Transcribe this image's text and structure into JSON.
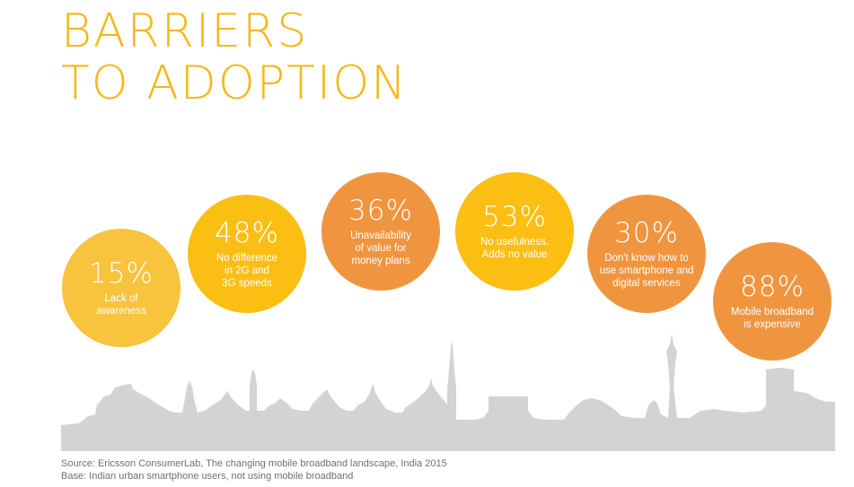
{
  "title": {
    "line1": "BARRIERS",
    "line2": "TO ADOPTION"
  },
  "colors": {
    "title": "#f6b81a",
    "skyline": "#d3d3d3",
    "bubble_yellow": "#fbbf14",
    "bubble_orange": "#f0953f",
    "bubble_light": "#f8c33d"
  },
  "chart_data": {
    "type": "bubble",
    "title": "BARRIERS TO ADOPTION",
    "unit": "%",
    "items": [
      {
        "value": 15,
        "label_pct": "15%",
        "label": "Lack of\nawareness",
        "color": "#f8c33d"
      },
      {
        "value": 48,
        "label_pct": "48%",
        "label": "No difference\nin 2G and\n3G speeds",
        "color": "#fbbf14"
      },
      {
        "value": 36,
        "label_pct": "36%",
        "label": "Unavailability\nof value for\nmoney plans",
        "color": "#f0953f"
      },
      {
        "value": 53,
        "label_pct": "53%",
        "label": "No usefulness.\nAdds no value",
        "color": "#fbbf14"
      },
      {
        "value": 30,
        "label_pct": "30%",
        "label": "Don't know how to\nuse smartphone and\ndigital services",
        "color": "#f0953f"
      },
      {
        "value": 88,
        "label_pct": "88%",
        "label": "Mobile broadband\nis expensive",
        "color": "#f0953f"
      }
    ]
  },
  "footer": {
    "source": "Source: Ericsson ConsumerLab, The changing mobile broadband landscape, India 2015",
    "base": "Base: Indian urban smartphone users, not using mobile broadband"
  }
}
